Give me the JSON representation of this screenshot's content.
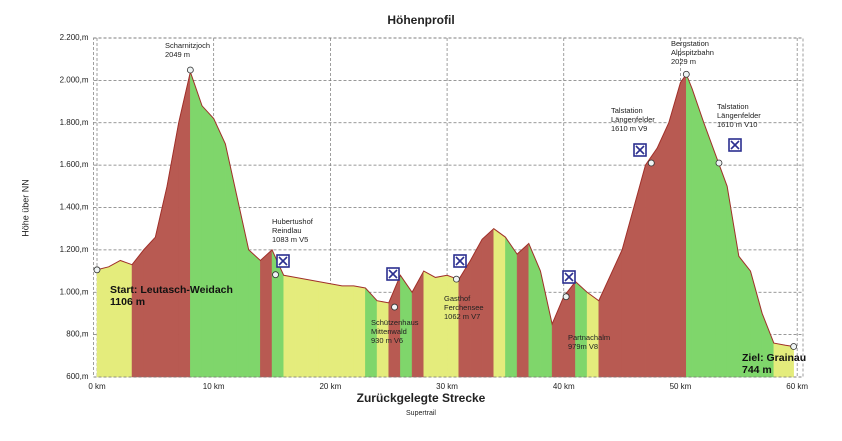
{
  "chart_data": {
    "type": "area",
    "title": "Höhenprofil",
    "subtitle": "Supertrail",
    "xlabel": "Zurückgelegte Strecke",
    "ylabel": "Höhe über NN",
    "x": [
      0,
      1,
      2,
      3,
      4,
      5,
      6,
      7,
      8,
      9,
      10,
      11,
      12,
      13,
      14,
      15,
      16,
      17,
      18,
      19,
      20,
      21,
      22,
      23,
      24,
      25,
      26,
      27,
      28,
      29,
      30,
      31,
      32,
      33,
      34,
      35,
      36,
      37,
      38,
      39,
      40,
      41,
      42,
      43,
      44,
      45,
      46,
      47,
      48,
      49,
      50,
      50.5,
      51,
      52,
      53,
      54,
      55,
      56,
      57,
      58,
      59,
      59.7
    ],
    "series": [
      {
        "color": "#a0302a",
        "values": [
          1106,
          1120,
          1150,
          1130,
          1200,
          1260,
          1500,
          1800,
          2040,
          1880,
          1820,
          1700,
          1450,
          1200,
          1150,
          1200,
          1080,
          1070,
          1060,
          1050,
          1040,
          1030,
          1030,
          1020,
          960,
          950,
          1080,
          1000,
          1100,
          1070,
          1080,
          1060,
          1150,
          1250,
          1300,
          1260,
          1180,
          1230,
          1100,
          850,
          980,
          1050,
          1000,
          960,
          1080,
          1200,
          1400,
          1600,
          1680,
          1800,
          1990,
          2029,
          1960,
          1800,
          1650,
          1500,
          1170,
          1100,
          900,
          760,
          750,
          744
        ]
      }
    ],
    "slope_colors": {
      "up": "#b85a52",
      "down": "#7fd66b",
      "flat": "#e4ec7c"
    },
    "xlim": [
      -0.3,
      60.5
    ],
    "ylim": [
      600,
      2200
    ],
    "xticks": [
      {
        "value": 0,
        "label": "0 km"
      },
      {
        "value": 10,
        "label": "10 km"
      },
      {
        "value": 20,
        "label": "20 km"
      },
      {
        "value": 30,
        "label": "30 km"
      },
      {
        "value": 40,
        "label": "40 km"
      },
      {
        "value": 50,
        "label": "50 km"
      },
      {
        "value": 60,
        "label": "60 km"
      }
    ],
    "yticks": [
      {
        "value": 600,
        "label": "600,m"
      },
      {
        "value": 800,
        "label": "800,m"
      },
      {
        "value": 1000,
        "label": "1.000,m"
      },
      {
        "value": 1200,
        "label": "1.200,m"
      },
      {
        "value": 1400,
        "label": "1.400,m"
      },
      {
        "value": 1600,
        "label": "1.600,m"
      },
      {
        "value": 1800,
        "label": "1.800,m"
      },
      {
        "value": 2000,
        "label": "2.000,m"
      },
      {
        "value": 2200,
        "label": "2.200,m"
      }
    ],
    "grid": true,
    "annotations": [
      {
        "lines": [
          "Start: Leutasch-Weidach",
          "1106 m"
        ],
        "x": 0,
        "y": 1106
      },
      {
        "lines": [
          "Scharnitzjoch",
          "2049 m"
        ],
        "x": 8,
        "y": 2049
      },
      {
        "lines": [
          "Hubertushof",
          "Reindlau",
          "1083 m V5"
        ],
        "x": 15.3,
        "y": 1083
      },
      {
        "lines": [
          "Schützenhaus",
          "Mittenwald",
          "930 m V6"
        ],
        "x": 25.5,
        "y": 930
      },
      {
        "lines": [
          "Gasthof",
          "Ferchensee",
          "1062 m V7"
        ],
        "x": 30.8,
        "y": 1062
      },
      {
        "lines": [
          "Partnachalm",
          "979m V8"
        ],
        "x": 40.2,
        "y": 979
      },
      {
        "lines": [
          "Talstation",
          "Längenfelder",
          "1610 m V9"
        ],
        "x": 47.5,
        "y": 1610
      },
      {
        "lines": [
          "Bergstation",
          "Alpspitzbahn",
          "2029 m"
        ],
        "x": 50.5,
        "y": 2029
      },
      {
        "lines": [
          "Talstation",
          "Längenfelder",
          "1610 m V10"
        ],
        "x": 53.3,
        "y": 1610
      },
      {
        "lines": [
          "Ziel: Grainau",
          "744 m"
        ],
        "x": 59.7,
        "y": 744
      }
    ]
  }
}
